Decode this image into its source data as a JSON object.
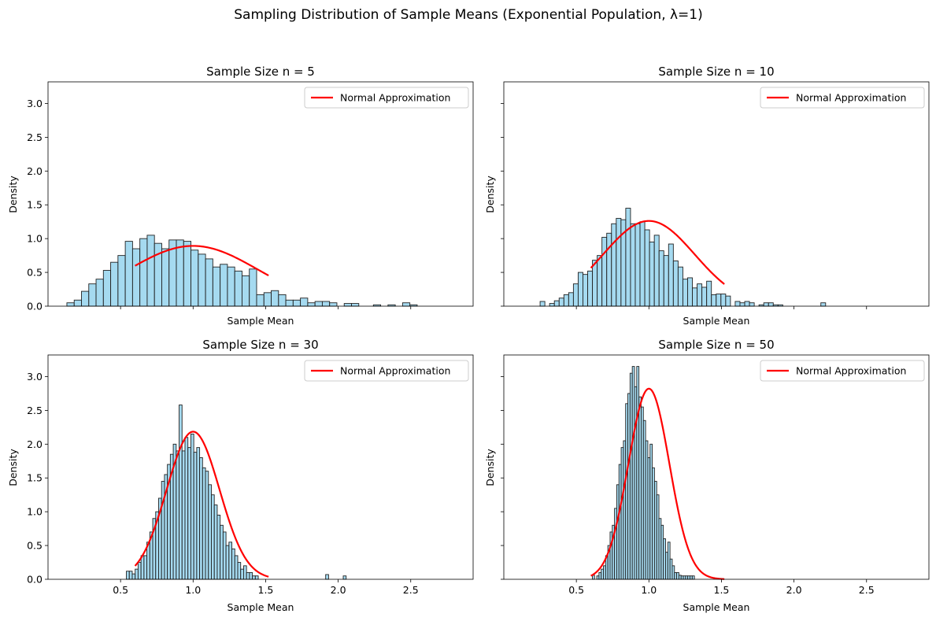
{
  "figure": {
    "title": "Sampling Distribution of Sample Means (Exponential Population, λ=1)",
    "colors": {
      "bar_fill": "#87ceeb",
      "bar_edge": "#222222",
      "curve": "#ff0000",
      "axis": "#000000"
    }
  },
  "chart_data": [
    {
      "type": "bar",
      "title": "Sample Size n = 5",
      "xlabel": "Sample Mean",
      "ylabel": "Density",
      "xlim": [
        0.0,
        2.93
      ],
      "ylim": [
        0,
        3.32
      ],
      "xticks": [
        0.5,
        1.0,
        1.5,
        2.0,
        2.5
      ],
      "xtick_labels_visible": false,
      "yticks": [
        0.0,
        0.5,
        1.0,
        1.5,
        2.0,
        2.5,
        3.0
      ],
      "ytick_labels": [
        "0.0",
        "0.5",
        "1.0",
        "1.5",
        "2.0",
        "2.5",
        "3.0"
      ],
      "ytick_labels_visible": true,
      "legend": {
        "label": "Normal Approximation",
        "loc": "upper right"
      },
      "histogram": {
        "bin_start": 0.13,
        "bin_width": 0.0503,
        "densities": [
          0.05,
          0.09,
          0.22,
          0.33,
          0.4,
          0.53,
          0.65,
          0.75,
          0.96,
          0.85,
          1.0,
          1.05,
          0.93,
          0.85,
          0.98,
          0.98,
          0.96,
          0.83,
          0.77,
          0.7,
          0.58,
          0.62,
          0.58,
          0.52,
          0.45,
          0.55,
          0.17,
          0.2,
          0.23,
          0.17,
          0.09,
          0.09,
          0.12,
          0.05,
          0.07,
          0.07,
          0.05,
          0.0,
          0.04,
          0.04,
          0.0,
          0.0,
          0.02,
          0.0,
          0.02,
          0.0,
          0.05,
          0.02
        ]
      },
      "normal_curve": {
        "mu": 1.0,
        "sigma": 0.4472,
        "x_range": [
          0.6,
          1.52
        ]
      }
    },
    {
      "type": "bar",
      "title": "Sample Size n = 10",
      "xlabel": "Sample Mean",
      "ylabel": "Density",
      "xlim": [
        0.0,
        2.93
      ],
      "ylim": [
        0,
        3.32
      ],
      "xticks": [
        0.5,
        1.0,
        1.5,
        2.0,
        2.5
      ],
      "xtick_labels_visible": false,
      "yticks": [
        0.0,
        0.5,
        1.0,
        1.5,
        2.0,
        2.5,
        3.0
      ],
      "ytick_labels": [
        "0.0",
        "0.5",
        "1.0",
        "1.5",
        "2.0",
        "2.5",
        "3.0"
      ],
      "ytick_labels_visible": false,
      "legend": {
        "label": "Normal Approximation",
        "loc": "upper right"
      },
      "histogram": {
        "bin_start": 0.25,
        "bin_width": 0.0328,
        "densities": [
          0.07,
          0.0,
          0.04,
          0.08,
          0.12,
          0.17,
          0.2,
          0.33,
          0.5,
          0.47,
          0.52,
          0.68,
          0.75,
          1.02,
          1.08,
          1.22,
          1.3,
          1.28,
          1.45,
          1.22,
          1.22,
          1.25,
          1.13,
          0.95,
          1.05,
          0.82,
          0.75,
          0.92,
          0.67,
          0.58,
          0.4,
          0.42,
          0.27,
          0.33,
          0.28,
          0.37,
          0.17,
          0.18,
          0.18,
          0.15,
          0.0,
          0.07,
          0.05,
          0.07,
          0.05,
          0.0,
          0.02,
          0.05,
          0.05,
          0.02,
          0.02,
          0.0,
          0.0,
          0.0,
          0.0,
          0.0,
          0.0,
          0.0,
          0.0,
          0.05
        ]
      },
      "normal_curve": {
        "mu": 1.0,
        "sigma": 0.3162,
        "x_range": [
          0.6,
          1.52
        ]
      }
    },
    {
      "type": "bar",
      "title": "Sample Size n = 30",
      "xlabel": "Sample Mean",
      "ylabel": "Density",
      "xlim": [
        0.0,
        2.93
      ],
      "ylim": [
        0,
        3.32
      ],
      "xticks": [
        0.5,
        1.0,
        1.5,
        2.0,
        2.5
      ],
      "xtick_labels": [
        "0.5",
        "1.0",
        "1.5",
        "2.0",
        "2.5"
      ],
      "xtick_labels_visible": true,
      "yticks": [
        0.0,
        0.5,
        1.0,
        1.5,
        2.0,
        2.5,
        3.0
      ],
      "ytick_labels": [
        "0.0",
        "0.5",
        "1.0",
        "1.5",
        "2.0",
        "2.5",
        "3.0"
      ],
      "ytick_labels_visible": true,
      "legend": {
        "label": "Normal Approximation",
        "loc": "upper right"
      },
      "histogram": {
        "bin_start": 0.54,
        "bin_width": 0.0202,
        "densities": [
          0.12,
          0.12,
          0.08,
          0.15,
          0.25,
          0.35,
          0.35,
          0.55,
          0.7,
          0.9,
          1.0,
          1.2,
          1.45,
          1.55,
          1.7,
          1.85,
          2.0,
          1.9,
          2.58,
          1.9,
          2.1,
          1.95,
          2.15,
          1.88,
          1.95,
          1.8,
          1.65,
          1.6,
          1.4,
          1.25,
          1.1,
          0.95,
          0.8,
          0.7,
          0.5,
          0.55,
          0.45,
          0.35,
          0.25,
          0.15,
          0.2,
          0.1,
          0.1,
          0.05,
          0.05,
          0.0,
          0.0,
          0.0,
          0.0,
          0.0,
          0.0,
          0.0,
          0.0,
          0.0,
          0.0,
          0.0,
          0.0,
          0.0,
          0.0,
          0.0,
          0.0,
          0.0,
          0.0,
          0.0,
          0.0,
          0.0,
          0.0,
          0.0,
          0.07,
          0.0,
          0.0,
          0.0,
          0.0,
          0.0,
          0.05
        ]
      },
      "normal_curve": {
        "mu": 1.0,
        "sigma": 0.1826,
        "x_range": [
          0.6,
          1.52
        ]
      }
    },
    {
      "type": "bar",
      "title": "Sample Size n = 50",
      "xlabel": "Sample Mean",
      "ylabel": "Density",
      "xlim": [
        0.0,
        2.93
      ],
      "ylim": [
        0,
        3.32
      ],
      "xticks": [
        0.5,
        1.0,
        1.5,
        2.0,
        2.5
      ],
      "xtick_labels": [
        "0.5",
        "1.0",
        "1.5",
        "2.0",
        "2.5"
      ],
      "xtick_labels_visible": true,
      "yticks": [
        0.0,
        0.5,
        1.0,
        1.5,
        2.0,
        2.5,
        3.0
      ],
      "ytick_labels": [
        "0.0",
        "0.5",
        "1.0",
        "1.5",
        "2.0",
        "2.5",
        "3.0"
      ],
      "ytick_labels_visible": false,
      "legend": {
        "label": "Normal Approximation",
        "loc": "upper right"
      },
      "histogram": {
        "bin_start": 0.61,
        "bin_width": 0.0153,
        "densities": [
          0.06,
          0.0,
          0.05,
          0.1,
          0.15,
          0.2,
          0.35,
          0.5,
          0.7,
          0.8,
          1.05,
          1.4,
          1.7,
          1.95,
          2.05,
          2.6,
          2.75,
          3.05,
          3.15,
          2.85,
          3.15,
          2.7,
          2.55,
          2.35,
          2.05,
          1.8,
          2.0,
          1.65,
          1.45,
          1.25,
          0.9,
          0.8,
          0.6,
          0.4,
          0.55,
          0.3,
          0.2,
          0.1,
          0.1,
          0.06,
          0.05,
          0.05,
          0.05,
          0.05,
          0.05,
          0.05
        ]
      },
      "normal_curve": {
        "mu": 1.0,
        "sigma": 0.1414,
        "x_range": [
          0.6,
          1.52
        ]
      }
    }
  ]
}
